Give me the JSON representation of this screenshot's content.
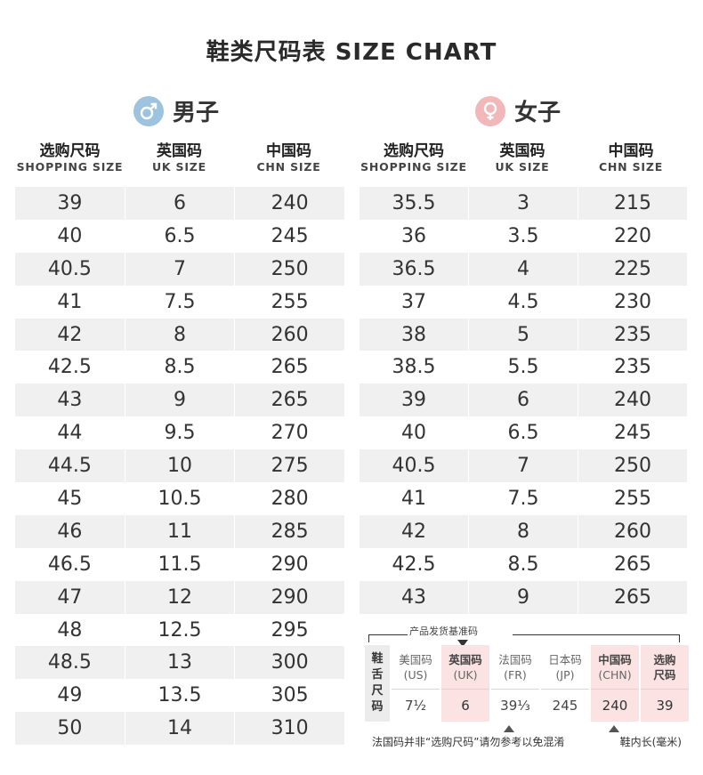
{
  "title": "鞋类尺码表 SIZE CHART",
  "men": {
    "label": "男子",
    "icon": "male-symbol-icon",
    "icon_color": "#9ec3df",
    "columns": [
      {
        "cn": "选购尺码",
        "en": "SHOPPING SIZE"
      },
      {
        "cn": "英国码",
        "en": "UK SIZE"
      },
      {
        "cn": "中国码",
        "en": "CHN SIZE"
      }
    ],
    "rows": [
      [
        "39",
        "6",
        "240"
      ],
      [
        "40",
        "6.5",
        "245"
      ],
      [
        "40.5",
        "7",
        "250"
      ],
      [
        "41",
        "7.5",
        "255"
      ],
      [
        "42",
        "8",
        "260"
      ],
      [
        "42.5",
        "8.5",
        "265"
      ],
      [
        "43",
        "9",
        "265"
      ],
      [
        "44",
        "9.5",
        "270"
      ],
      [
        "44.5",
        "10",
        "275"
      ],
      [
        "45",
        "10.5",
        "280"
      ],
      [
        "46",
        "11",
        "285"
      ],
      [
        "46.5",
        "11.5",
        "290"
      ],
      [
        "47",
        "12",
        "290"
      ],
      [
        "48",
        "12.5",
        "295"
      ],
      [
        "48.5",
        "13",
        "300"
      ],
      [
        "49",
        "13.5",
        "305"
      ],
      [
        "50",
        "14",
        "310"
      ]
    ]
  },
  "women": {
    "label": "女子",
    "icon": "female-symbol-icon",
    "icon_color": "#f2b7b8",
    "columns": [
      {
        "cn": "选购尺码",
        "en": "SHOPPING SIZE"
      },
      {
        "cn": "英国码",
        "en": "UK SIZE"
      },
      {
        "cn": "中国码",
        "en": "CHN SIZE"
      }
    ],
    "rows": [
      [
        "35.5",
        "3",
        "215"
      ],
      [
        "36",
        "3.5",
        "220"
      ],
      [
        "36.5",
        "4",
        "225"
      ],
      [
        "37",
        "4.5",
        "230"
      ],
      [
        "38",
        "5",
        "235"
      ],
      [
        "38.5",
        "5.5",
        "235"
      ],
      [
        "39",
        "6",
        "240"
      ],
      [
        "40",
        "6.5",
        "245"
      ],
      [
        "40.5",
        "7",
        "250"
      ],
      [
        "41",
        "7.5",
        "255"
      ],
      [
        "42",
        "8",
        "260"
      ],
      [
        "42.5",
        "8.5",
        "265"
      ],
      [
        "43",
        "9",
        "265"
      ]
    ]
  },
  "reference": {
    "title": "产品发货基准码",
    "side_label": [
      "鞋",
      "舌",
      "尺",
      "码"
    ],
    "columns": [
      {
        "name": "美国码",
        "unit": "(US)",
        "value": "7½",
        "highlight": false
      },
      {
        "name": "英国码",
        "unit": "(UK)",
        "value": "6",
        "highlight": true
      },
      {
        "name": "法国码",
        "unit": "(FR)",
        "value": "39⅓",
        "highlight": false
      },
      {
        "name": "日本码",
        "unit": "(JP)",
        "value": "245",
        "highlight": false
      },
      {
        "name": "中国码",
        "unit": "(CHN)",
        "value": "240",
        "highlight": true
      },
      {
        "name": "选购\n尺码",
        "unit": "",
        "value": "39",
        "highlight": true
      }
    ],
    "note_left": "法国码并非“选购尺码”请勿参考以免混淆",
    "note_right": "鞋内长(毫米)",
    "highlight_color": "#fbe3e3"
  }
}
